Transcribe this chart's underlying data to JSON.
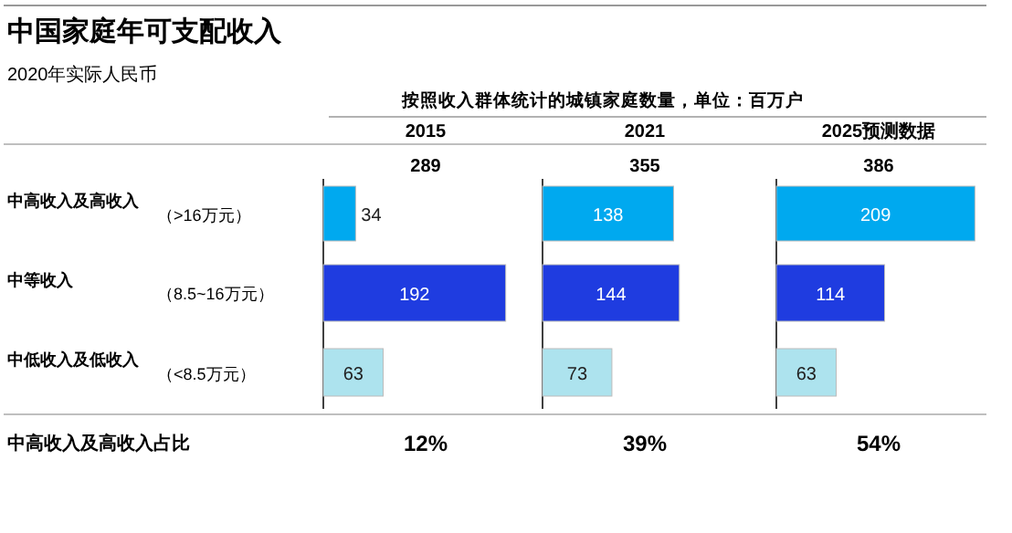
{
  "chart_data": [
    {
      "type": "other",
      "title": "中国家庭年可支配收入",
      "subtitle": "2020年实际人民币",
      "annotations": [
        "按照收入群体统计的城镇家庭数量，单位：百万户",
        "（>16万元）",
        "（8.5~16万元）",
        "（<8.5万元）",
        "中高收入及高收入占比"
      ]
    },
    {
      "type": "bar",
      "orientation": "horizontal",
      "title": "2015",
      "categories": [
        "中高收入及高收入",
        "中等收入",
        "中低收入及低收入"
      ],
      "values": [
        34,
        192,
        63
      ],
      "colors": [
        "#00a9ef",
        "#1f3ce0",
        "#ade3ee"
      ],
      "data_labels": true,
      "annotations": [
        "289",
        "12%"
      ]
    },
    {
      "type": "bar",
      "orientation": "horizontal",
      "title": "2021",
      "values": [
        138,
        144,
        73
      ],
      "colors": [
        "#00a9ef",
        "#1f3ce0",
        "#ade3ee"
      ],
      "data_labels": true,
      "annotations": [
        "355",
        "39%"
      ]
    },
    {
      "type": "bar",
      "orientation": "horizontal",
      "title": "2025预测数据",
      "values": [
        209,
        114,
        63
      ],
      "colors": [
        "#00a9ef",
        "#1f3ce0",
        "#ade3ee"
      ],
      "data_labels": true,
      "annotations": [
        "386",
        "54%"
      ]
    }
  ]
}
